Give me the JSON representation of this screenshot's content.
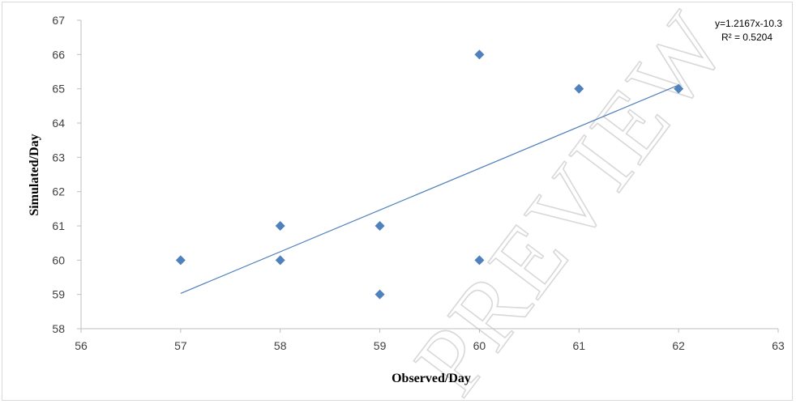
{
  "chart_data": {
    "type": "scatter",
    "xlabel": "Observed/Day",
    "ylabel": "Simulated/Day",
    "xlim": [
      56,
      63
    ],
    "ylim": [
      58,
      67
    ],
    "xticks": [
      56,
      57,
      58,
      59,
      60,
      61,
      62,
      63
    ],
    "yticks": [
      58,
      59,
      60,
      61,
      62,
      63,
      64,
      65,
      66,
      67
    ],
    "grid": false,
    "series": [
      {
        "points": [
          {
            "x": 57,
            "y": 60
          },
          {
            "x": 58,
            "y": 61
          },
          {
            "x": 58,
            "y": 60
          },
          {
            "x": 59,
            "y": 61
          },
          {
            "x": 59,
            "y": 59
          },
          {
            "x": 60,
            "y": 66
          },
          {
            "x": 60,
            "y": 60
          },
          {
            "x": 61,
            "y": 65
          },
          {
            "x": 62,
            "y": 65
          }
        ],
        "marker": "diamond",
        "color": "#4f81bd"
      }
    ],
    "trendline": {
      "x_range": [
        57,
        62
      ],
      "y_range": [
        59.03,
        65.11
      ],
      "color": "#4f81bd",
      "equation": "y=1.2167x-10.3",
      "r_squared": "R² = 0.5204",
      "label_position": "top-right"
    },
    "watermark": "PREVIEW"
  }
}
